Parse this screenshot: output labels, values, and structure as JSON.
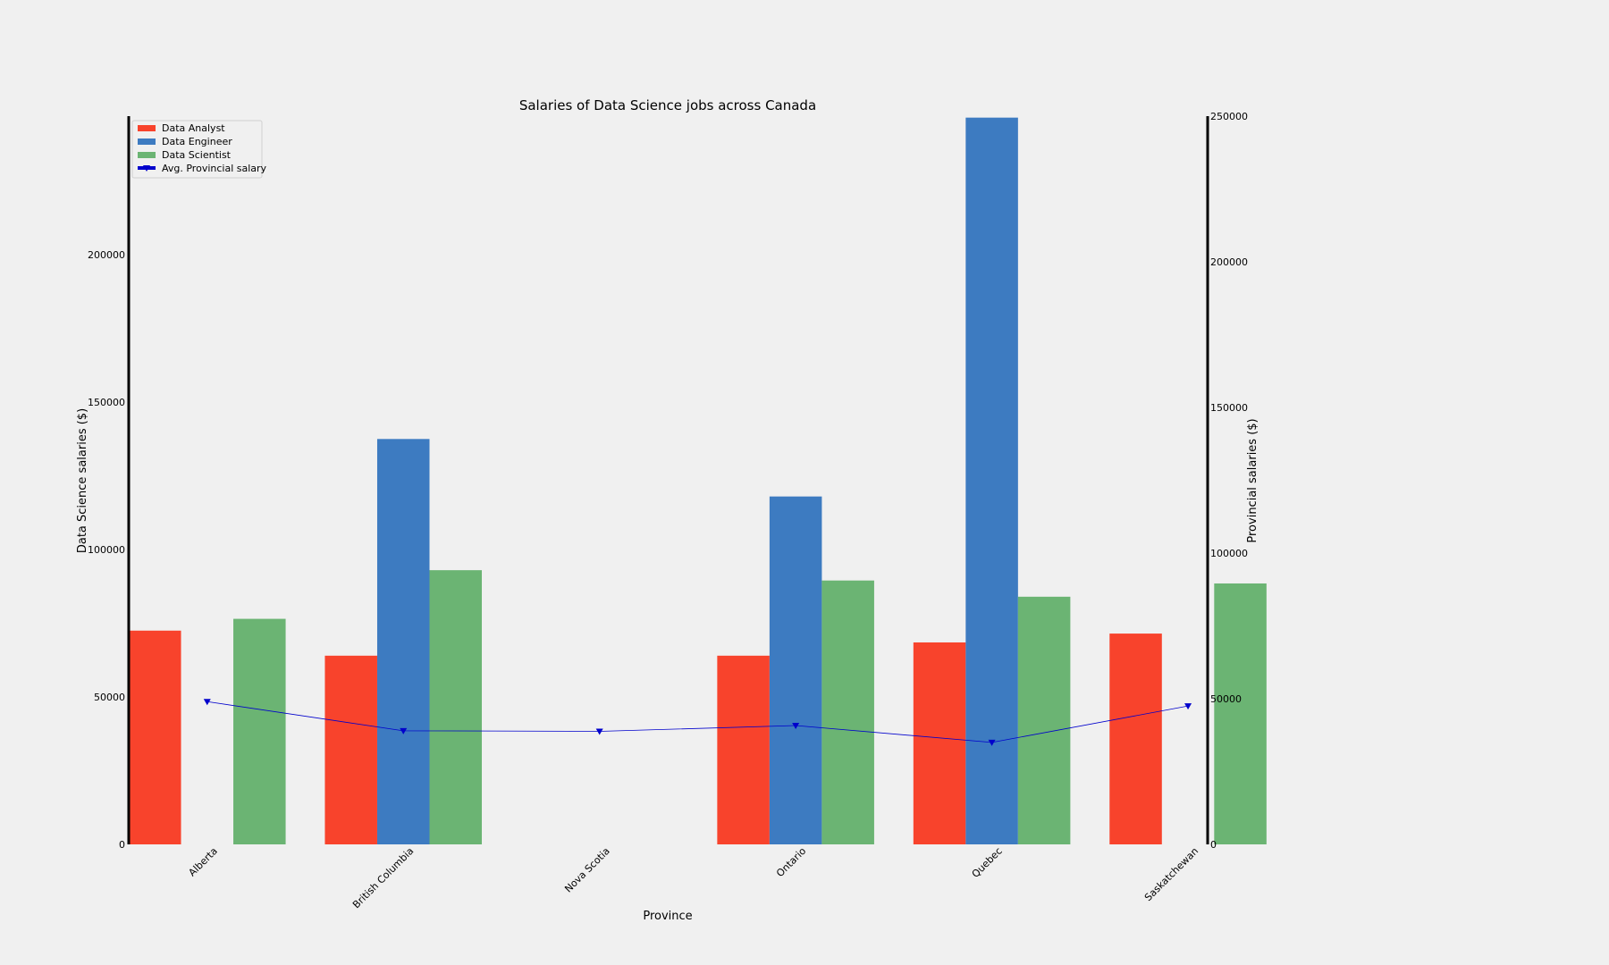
{
  "chart_data": {
    "type": "bar",
    "title": "Salaries of Data Science jobs across Canada",
    "xlabel": "Province",
    "ylabel": "Data Science salaries ($)",
    "y2label": "Provincial salaries ($)",
    "categories": [
      "Alberta",
      "British Columbia",
      "Nova Scotia",
      "Ontario",
      "Quebec",
      "Saskatchewan"
    ],
    "ylim": [
      0,
      247000
    ],
    "y2lim": [
      0,
      250000
    ],
    "yticks": [
      0,
      50000,
      100000,
      150000,
      200000
    ],
    "y2ticks": [
      0,
      50000,
      100000,
      150000,
      200000,
      250000
    ],
    "legend_position": "top-left",
    "series": [
      {
        "name": "Data Analyst",
        "color": "#f8432c",
        "values": [
          72500,
          64000,
          null,
          64000,
          68500,
          71500
        ]
      },
      {
        "name": "Data Engineer",
        "color": "#3d7bc1",
        "values": [
          null,
          137500,
          null,
          118000,
          246500,
          null
        ]
      },
      {
        "name": "Data Scientist",
        "color": "#6bb473",
        "values": [
          76500,
          93000,
          null,
          89500,
          84000,
          88500
        ]
      }
    ],
    "line_series": {
      "name": "Avg. Provincial salary",
      "color": "#0000cc",
      "axis": "right",
      "marker": "triangle-down",
      "values": [
        49000,
        39000,
        38800,
        40800,
        35000,
        47500
      ]
    }
  }
}
